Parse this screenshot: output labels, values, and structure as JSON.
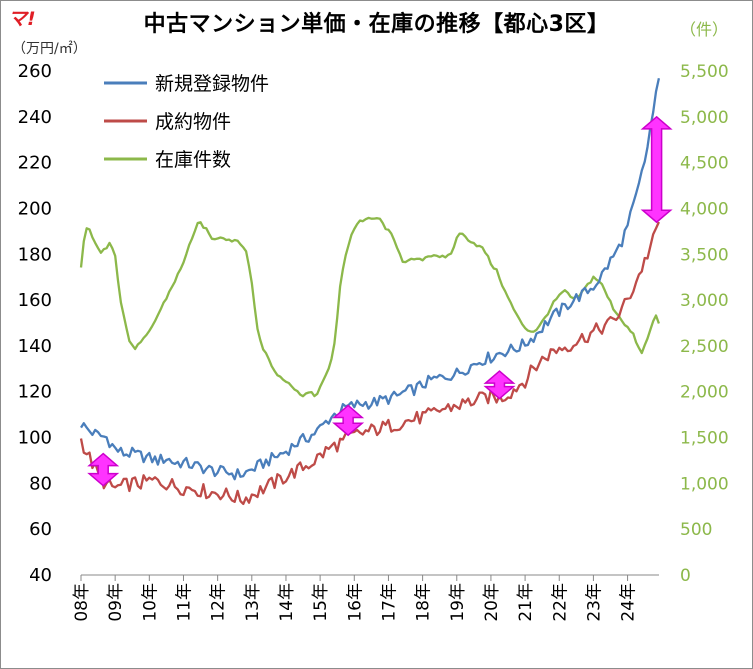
{
  "logo_text": "マ!",
  "chart_data": {
    "type": "line",
    "title": "中古マンション単価・在庫の推移【都心3区】",
    "left_axis_unit": "（万円/㎡）",
    "right_axis_unit": "（件）",
    "left_ylim": [
      40,
      260
    ],
    "left_ticks": [
      "40",
      "60",
      "80",
      "100",
      "120",
      "140",
      "160",
      "180",
      "200",
      "220",
      "240",
      "260"
    ],
    "right_ylim": [
      0,
      5500
    ],
    "right_ticks": [
      "0",
      "500",
      "1,000",
      "1,500",
      "2,000",
      "2,500",
      "3,000",
      "3,500",
      "4,000",
      "4,500",
      "5,000",
      "5,500"
    ],
    "x_labels": [
      "08年",
      "09年",
      "10年",
      "11年",
      "12年",
      "13年",
      "14年",
      "15年",
      "16年",
      "17年",
      "18年",
      "19年",
      "20年",
      "21年",
      "22年",
      "23年",
      "24年"
    ],
    "x_range": [
      2008.0,
      2024.92
    ],
    "series": [
      {
        "name": "新規登録物件",
        "axis": "left",
        "color": "#4a7ebb",
        "points": [
          [
            2008.0,
            106
          ],
          [
            2008.25,
            103
          ],
          [
            2008.5,
            101
          ],
          [
            2008.75,
            100
          ],
          [
            2009.0,
            95
          ],
          [
            2009.25,
            93
          ],
          [
            2009.5,
            93
          ],
          [
            2009.75,
            92
          ],
          [
            2010.0,
            91
          ],
          [
            2010.25,
            90
          ],
          [
            2010.5,
            91
          ],
          [
            2010.75,
            89
          ],
          [
            2011.0,
            89
          ],
          [
            2011.25,
            88
          ],
          [
            2011.5,
            87
          ],
          [
            2011.75,
            86
          ],
          [
            2012.0,
            85
          ],
          [
            2012.25,
            85
          ],
          [
            2012.5,
            84
          ],
          [
            2012.75,
            84
          ],
          [
            2013.0,
            86
          ],
          [
            2013.25,
            88
          ],
          [
            2013.5,
            90
          ],
          [
            2013.75,
            92
          ],
          [
            2014.0,
            94
          ],
          [
            2014.25,
            97
          ],
          [
            2014.5,
            99
          ],
          [
            2014.75,
            101
          ],
          [
            2015.0,
            104
          ],
          [
            2015.25,
            108
          ],
          [
            2015.5,
            111
          ],
          [
            2015.75,
            113
          ],
          [
            2016.0,
            114
          ],
          [
            2016.25,
            115
          ],
          [
            2016.5,
            115
          ],
          [
            2016.75,
            116
          ],
          [
            2017.0,
            117
          ],
          [
            2017.25,
            118
          ],
          [
            2017.5,
            120
          ],
          [
            2017.75,
            121
          ],
          [
            2018.0,
            123
          ],
          [
            2018.25,
            125
          ],
          [
            2018.5,
            126
          ],
          [
            2018.75,
            127
          ],
          [
            2019.0,
            128
          ],
          [
            2019.25,
            130
          ],
          [
            2019.5,
            132
          ],
          [
            2019.75,
            134
          ],
          [
            2020.0,
            135
          ],
          [
            2020.25,
            137
          ],
          [
            2020.5,
            138
          ],
          [
            2020.75,
            139
          ],
          [
            2021.0,
            141
          ],
          [
            2021.25,
            144
          ],
          [
            2021.5,
            148
          ],
          [
            2021.75,
            152
          ],
          [
            2022.0,
            155
          ],
          [
            2022.25,
            158
          ],
          [
            2022.5,
            161
          ],
          [
            2022.75,
            163
          ],
          [
            2023.0,
            166
          ],
          [
            2023.25,
            171
          ],
          [
            2023.5,
            177
          ],
          [
            2023.75,
            183
          ],
          [
            2024.0,
            192
          ],
          [
            2024.25,
            205
          ],
          [
            2024.5,
            220
          ],
          [
            2024.75,
            242
          ],
          [
            2024.92,
            256
          ]
        ]
      },
      {
        "name": "成約物件",
        "axis": "left",
        "color": "#be4b48",
        "points": [
          [
            2008.0,
            99
          ],
          [
            2008.25,
            91
          ],
          [
            2008.5,
            84
          ],
          [
            2008.75,
            79
          ],
          [
            2009.0,
            78
          ],
          [
            2009.25,
            79
          ],
          [
            2009.5,
            80
          ],
          [
            2009.75,
            80
          ],
          [
            2010.0,
            81
          ],
          [
            2010.25,
            81
          ],
          [
            2010.5,
            80
          ],
          [
            2010.75,
            79
          ],
          [
            2011.0,
            78
          ],
          [
            2011.25,
            78
          ],
          [
            2011.5,
            77
          ],
          [
            2011.75,
            76
          ],
          [
            2012.0,
            76
          ],
          [
            2012.25,
            75
          ],
          [
            2012.5,
            74
          ],
          [
            2012.75,
            73
          ],
          [
            2013.0,
            75
          ],
          [
            2013.25,
            77
          ],
          [
            2013.5,
            79
          ],
          [
            2013.75,
            81
          ],
          [
            2014.0,
            83
          ],
          [
            2014.25,
            85
          ],
          [
            2014.5,
            87
          ],
          [
            2014.75,
            89
          ],
          [
            2015.0,
            92
          ],
          [
            2015.25,
            95
          ],
          [
            2015.5,
            97
          ],
          [
            2015.75,
            99
          ],
          [
            2016.0,
            101
          ],
          [
            2016.25,
            102
          ],
          [
            2016.5,
            103
          ],
          [
            2016.75,
            104
          ],
          [
            2017.0,
            105
          ],
          [
            2017.25,
            106
          ],
          [
            2017.5,
            107
          ],
          [
            2017.75,
            108
          ],
          [
            2018.0,
            109
          ],
          [
            2018.25,
            110
          ],
          [
            2018.5,
            112
          ],
          [
            2018.75,
            113
          ],
          [
            2019.0,
            114
          ],
          [
            2019.25,
            115
          ],
          [
            2019.5,
            116
          ],
          [
            2019.75,
            117
          ],
          [
            2020.0,
            118
          ],
          [
            2020.25,
            117
          ],
          [
            2020.5,
            119
          ],
          [
            2020.75,
            122
          ],
          [
            2021.0,
            125
          ],
          [
            2021.25,
            130
          ],
          [
            2021.5,
            134
          ],
          [
            2021.75,
            137
          ],
          [
            2022.0,
            139
          ],
          [
            2022.25,
            140
          ],
          [
            2022.5,
            142
          ],
          [
            2022.75,
            144
          ],
          [
            2023.0,
            146
          ],
          [
            2023.25,
            148
          ],
          [
            2023.5,
            150
          ],
          [
            2023.75,
            154
          ],
          [
            2024.0,
            160
          ],
          [
            2024.25,
            168
          ],
          [
            2024.5,
            177
          ],
          [
            2024.75,
            186
          ],
          [
            2024.92,
            194
          ]
        ]
      },
      {
        "name": "在庫件数",
        "axis": "right",
        "color": "#8cb84a",
        "points": [
          [
            2008.0,
            3350
          ],
          [
            2008.1,
            3700
          ],
          [
            2008.2,
            3800
          ],
          [
            2008.4,
            3650
          ],
          [
            2008.55,
            3500
          ],
          [
            2008.7,
            3550
          ],
          [
            2008.85,
            3650
          ],
          [
            2009.0,
            3500
          ],
          [
            2009.15,
            3000
          ],
          [
            2009.3,
            2750
          ],
          [
            2009.45,
            2500
          ],
          [
            2009.6,
            2480
          ],
          [
            2009.8,
            2550
          ],
          [
            2010.0,
            2650
          ],
          [
            2010.2,
            2800
          ],
          [
            2010.4,
            2950
          ],
          [
            2010.6,
            3100
          ],
          [
            2010.8,
            3250
          ],
          [
            2011.0,
            3400
          ],
          [
            2011.15,
            3600
          ],
          [
            2011.3,
            3700
          ],
          [
            2011.45,
            3860
          ],
          [
            2011.6,
            3800
          ],
          [
            2011.75,
            3720
          ],
          [
            2011.9,
            3650
          ],
          [
            2012.05,
            3700
          ],
          [
            2012.2,
            3680
          ],
          [
            2012.4,
            3650
          ],
          [
            2012.55,
            3660
          ],
          [
            2012.7,
            3620
          ],
          [
            2012.85,
            3500
          ],
          [
            2013.0,
            3200
          ],
          [
            2013.15,
            2700
          ],
          [
            2013.3,
            2500
          ],
          [
            2013.5,
            2350
          ],
          [
            2013.7,
            2200
          ],
          [
            2013.9,
            2150
          ],
          [
            2014.1,
            2100
          ],
          [
            2014.3,
            2000
          ],
          [
            2014.5,
            1970
          ],
          [
            2014.7,
            1990
          ],
          [
            2014.85,
            1950
          ],
          [
            2015.0,
            2050
          ],
          [
            2015.15,
            2150
          ],
          [
            2015.3,
            2300
          ],
          [
            2015.45,
            2600
          ],
          [
            2015.6,
            3200
          ],
          [
            2015.75,
            3500
          ],
          [
            2015.9,
            3700
          ],
          [
            2016.1,
            3850
          ],
          [
            2016.3,
            3880
          ],
          [
            2016.5,
            3880
          ],
          [
            2016.7,
            3900
          ],
          [
            2016.9,
            3800
          ],
          [
            2017.1,
            3700
          ],
          [
            2017.3,
            3550
          ],
          [
            2017.45,
            3400
          ],
          [
            2017.6,
            3420
          ],
          [
            2017.75,
            3450
          ],
          [
            2017.9,
            3430
          ],
          [
            2018.1,
            3470
          ],
          [
            2018.3,
            3500
          ],
          [
            2018.5,
            3480
          ],
          [
            2018.7,
            3450
          ],
          [
            2018.9,
            3550
          ],
          [
            2019.05,
            3750
          ],
          [
            2019.2,
            3700
          ],
          [
            2019.4,
            3650
          ],
          [
            2019.6,
            3600
          ],
          [
            2019.8,
            3550
          ],
          [
            2020.0,
            3400
          ],
          [
            2020.2,
            3300
          ],
          [
            2020.4,
            3100
          ],
          [
            2020.6,
            2950
          ],
          [
            2020.8,
            2800
          ],
          [
            2021.0,
            2700
          ],
          [
            2021.2,
            2650
          ],
          [
            2021.4,
            2700
          ],
          [
            2021.6,
            2820
          ],
          [
            2021.8,
            2950
          ],
          [
            2022.0,
            3050
          ],
          [
            2022.2,
            3100
          ],
          [
            2022.4,
            3000
          ],
          [
            2022.6,
            3050
          ],
          [
            2022.8,
            3150
          ],
          [
            2023.0,
            3250
          ],
          [
            2023.2,
            3200
          ],
          [
            2023.4,
            3050
          ],
          [
            2023.6,
            2900
          ],
          [
            2023.8,
            2800
          ],
          [
            2024.0,
            2700
          ],
          [
            2024.2,
            2600
          ],
          [
            2024.4,
            2400
          ],
          [
            2024.55,
            2550
          ],
          [
            2024.7,
            2700
          ],
          [
            2024.8,
            2850
          ],
          [
            2024.92,
            2750
          ]
        ]
      }
    ],
    "legend": [
      "新規登録物件",
      "成約物件",
      "在庫件数"
    ],
    "annotations": [
      {
        "label": "gap-2008",
        "x": 2008.65,
        "y_low": 79,
        "y_high": 93
      },
      {
        "label": "gap-2015",
        "x": 2015.82,
        "y_low": 101,
        "y_high": 114
      },
      {
        "label": "gap-2020",
        "x": 2020.25,
        "y_low": 117,
        "y_high": 129
      },
      {
        "label": "gap-2024",
        "x": 2024.85,
        "y_low": 194,
        "y_high": 240
      }
    ]
  }
}
